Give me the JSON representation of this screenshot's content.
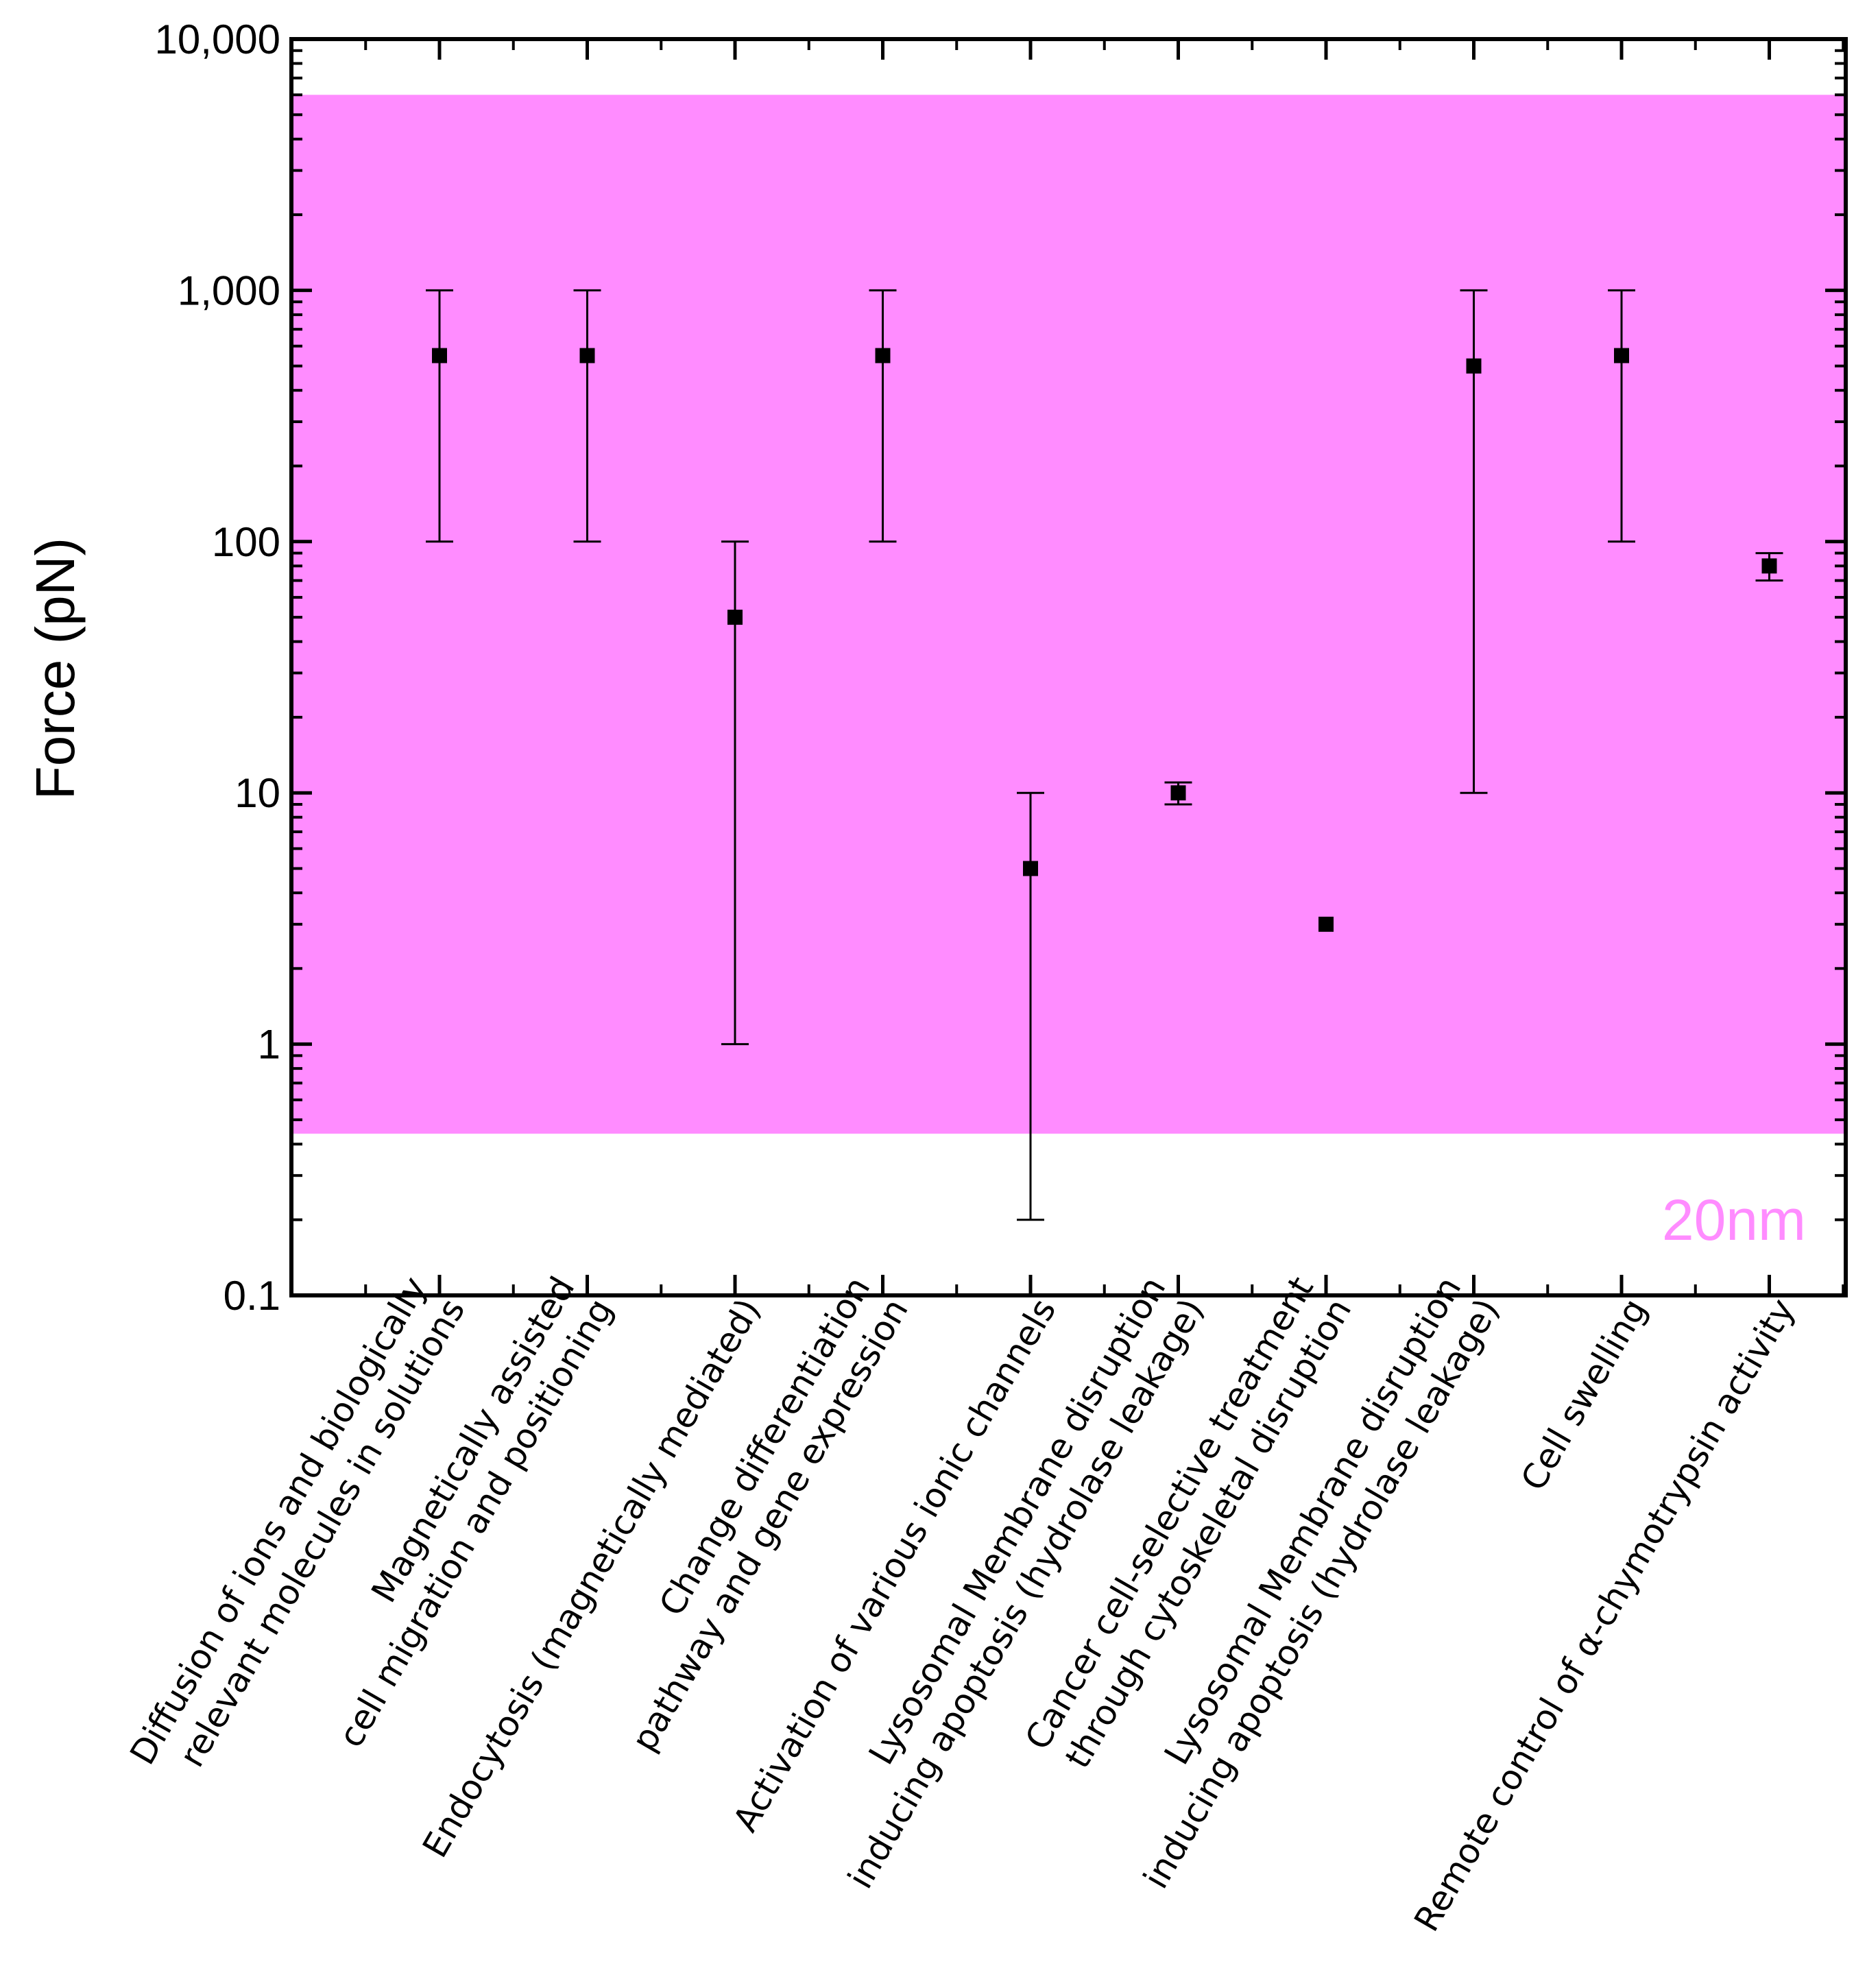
{
  "chart_data": {
    "type": "scatter",
    "title": "",
    "xlabel": "",
    "ylabel": "Force (pN)",
    "yscale": "log",
    "ylim": [
      0.1,
      10000
    ],
    "yticks": [
      {
        "value": 0.1,
        "label": "0.1"
      },
      {
        "value": 1,
        "label": "1"
      },
      {
        "value": 10,
        "label": "10"
      },
      {
        "value": 100,
        "label": "100"
      },
      {
        "value": 1000,
        "label": "1,000"
      },
      {
        "value": 10000,
        "label": "10,000"
      }
    ],
    "band": {
      "label": "20nm",
      "low": 0.44,
      "high": 6000,
      "color": "#ff8cff",
      "label_color": "#ff8cff"
    },
    "marker_color": "#000000",
    "categories": [
      {
        "lines": [
          "Diffusion of ions and biologically",
          "relevant molecules in solutions"
        ],
        "value": 550,
        "err_low": 100,
        "err_high": 1000
      },
      {
        "lines": [
          "Magnetically assisted",
          "cell migration and positioning"
        ],
        "value": 550,
        "err_low": 100,
        "err_high": 1000
      },
      {
        "lines": [
          "Endocytosis (magnetically mediated)"
        ],
        "value": 50,
        "err_low": 1,
        "err_high": 100
      },
      {
        "lines": [
          "Change differentiation",
          "pathway and gene expression"
        ],
        "value": 550,
        "err_low": 100,
        "err_high": 1000
      },
      {
        "lines": [
          "Activation of various ionic channels"
        ],
        "value": 5,
        "err_low": 0.2,
        "err_high": 10
      },
      {
        "lines": [
          "Lysosomal Membrane disruption",
          "inducing apoptosis (hydrolase leakage)"
        ],
        "value": 10,
        "err_low": 9,
        "err_high": 11
      },
      {
        "lines": [
          "Cancer cell-selective treatment",
          "through cytoskeletal disruption"
        ],
        "value": 3,
        "err_low": null,
        "err_high": null
      },
      {
        "lines": [
          "Lysosomal Membrane disruption",
          "inducing apoptosis (hydrolase leakage)"
        ],
        "value": 500,
        "err_low": 10,
        "err_high": 1000
      },
      {
        "lines": [
          "Cell swelling"
        ],
        "value": 550,
        "err_low": 100,
        "err_high": 1000
      },
      {
        "lines": [
          "Remote control of α-chymotrypsin activity"
        ],
        "value": 80,
        "err_low": 70,
        "err_high": 90
      }
    ]
  }
}
